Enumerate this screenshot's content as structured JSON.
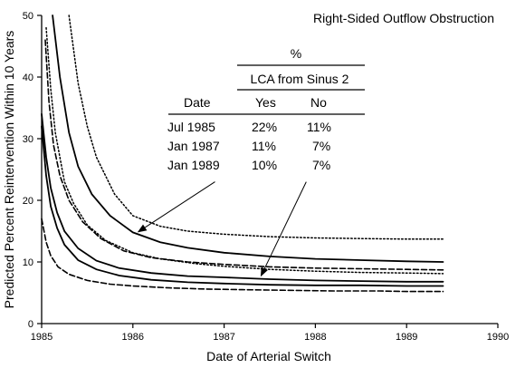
{
  "chart_data": {
    "type": "line",
    "title": "Right-Sided Outflow Obstruction",
    "xlabel": "Date of Arterial Switch",
    "ylabel": "Predicted Percent Reintervention Within 10 Years",
    "xlim": [
      1985,
      1990
    ],
    "ylim": [
      0,
      50
    ],
    "xticks": [
      "1985",
      "1986",
      "1987",
      "1988",
      "1989",
      "1990"
    ],
    "yticks": [
      "0",
      "10",
      "20",
      "30",
      "40",
      "50"
    ],
    "grid": false,
    "series": [
      {
        "style": "dotted",
        "x": [
          1985.3,
          1985.4,
          1985.5,
          1985.6,
          1985.8,
          1986.0,
          1986.3,
          1986.6,
          1987.0,
          1987.5,
          1988.0,
          1988.5,
          1989.0,
          1989.4
        ],
        "y": [
          50,
          39,
          32,
          27,
          21,
          17.5,
          15.8,
          15,
          14.5,
          14.1,
          13.9,
          13.8,
          13.7,
          13.7
        ]
      },
      {
        "style": "solid",
        "x": [
          1985.12,
          1985.2,
          1985.3,
          1985.4,
          1985.55,
          1985.75,
          1986.0,
          1986.3,
          1986.6,
          1987.0,
          1987.5,
          1988.0,
          1988.5,
          1989.0,
          1989.4
        ],
        "y": [
          50,
          40,
          31,
          25.5,
          21,
          17.5,
          14.8,
          13.2,
          12.3,
          11.5,
          10.9,
          10.5,
          10.3,
          10.1,
          10.0
        ]
      },
      {
        "style": "dotted",
        "x": [
          1985.05,
          1985.1,
          1985.15,
          1985.25,
          1985.35,
          1985.5,
          1985.7,
          1986.0,
          1986.3,
          1986.7,
          1987.0,
          1987.5,
          1988.0,
          1988.5,
          1989.0,
          1989.4
        ],
        "y": [
          48,
          38,
          31,
          23,
          19.5,
          16,
          13.5,
          11.5,
          10.5,
          9.7,
          9.3,
          8.8,
          8.5,
          8.3,
          8.2,
          8.1
        ]
      },
      {
        "style": "dashed",
        "x": [
          1985.04,
          1985.08,
          1985.13,
          1985.2,
          1985.3,
          1985.45,
          1985.65,
          1985.9,
          1986.2,
          1986.6,
          1987.0,
          1987.5,
          1988.0,
          1988.5,
          1989.0,
          1989.4
        ],
        "y": [
          46,
          36,
          29,
          24,
          20,
          16.5,
          13.8,
          11.8,
          10.7,
          10,
          9.6,
          9.2,
          9,
          8.9,
          8.8,
          8.7
        ]
      },
      {
        "style": "solid",
        "x": [
          1985.0,
          1985.05,
          1985.1,
          1985.17,
          1985.25,
          1985.4,
          1985.6,
          1985.85,
          1986.2,
          1986.6,
          1987.0,
          1987.5,
          1988.0,
          1988.5,
          1989.0,
          1989.4
        ],
        "y": [
          34,
          27,
          22,
          18,
          15,
          12.2,
          10.2,
          9,
          8.2,
          7.7,
          7.5,
          7.2,
          7.0,
          6.9,
          6.8,
          6.8
        ]
      },
      {
        "style": "solid",
        "x": [
          1985.0,
          1985.05,
          1985.1,
          1985.17,
          1985.25,
          1985.4,
          1985.6,
          1985.85,
          1986.2,
          1986.6,
          1987.0,
          1987.5,
          1988.0,
          1988.5,
          1989.0,
          1989.4
        ],
        "y": [
          32,
          24,
          19,
          15.5,
          12.8,
          10.3,
          8.8,
          7.8,
          7.1,
          6.7,
          6.5,
          6.3,
          6.2,
          6.2,
          6.1,
          6.1
        ]
      },
      {
        "style": "dashed",
        "x": [
          1985.0,
          1985.05,
          1985.1,
          1985.18,
          1985.3,
          1985.5,
          1985.75,
          1986.0,
          1986.4,
          1986.8,
          1987.2,
          1987.7,
          1988.2,
          1988.7,
          1989.0,
          1989.4
        ],
        "y": [
          17,
          13.2,
          11,
          9.2,
          8,
          7,
          6.4,
          6.1,
          5.8,
          5.6,
          5.5,
          5.4,
          5.3,
          5.3,
          5.2,
          5.2
        ]
      }
    ],
    "table": {
      "group_header": "%",
      "subgroup_header": "LCA from Sinus 2",
      "columns": [
        "Date",
        "Yes",
        "No"
      ],
      "rows": [
        [
          "Jul  1985",
          "22%",
          "11%"
        ],
        [
          "Jan 1987",
          "11%",
          "7%"
        ],
        [
          "Jan 1989",
          "10%",
          "7%"
        ]
      ]
    },
    "annotations": [
      {
        "type": "arrow",
        "from": [
          1986.9,
          23
        ],
        "to": [
          1986.05,
          14.8
        ]
      },
      {
        "type": "arrow",
        "from": [
          1987.9,
          23
        ],
        "to": [
          1987.4,
          7.6
        ]
      }
    ]
  }
}
